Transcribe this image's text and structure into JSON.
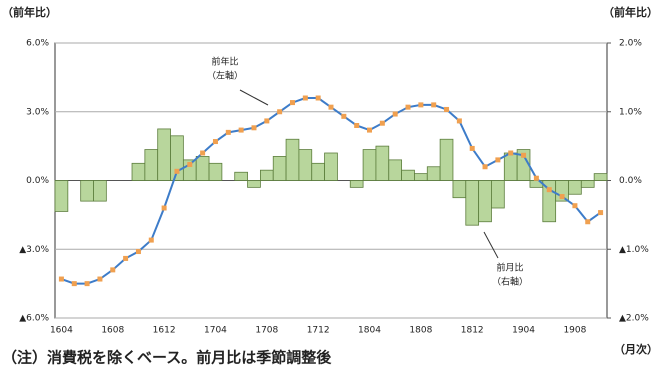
{
  "chart_data": {
    "type": "bar_line",
    "y_label": "（前年比）",
    "y2_label": "（前年比）",
    "x_unit": "（月次）",
    "note": "（注）消費税を除くベース。前月比は季節調整後",
    "annotations": [
      "前年比",
      "（左軸）",
      "前月比",
      "（右軸）"
    ],
    "categories": [
      "1604",
      null,
      null,
      null,
      "1608",
      null,
      null,
      null,
      "1612",
      null,
      null,
      null,
      "1704",
      null,
      null,
      null,
      "1708",
      null,
      null,
      null,
      "1712",
      null,
      null,
      null,
      "1804",
      null,
      null,
      null,
      "1808",
      null,
      null,
      null,
      "1812",
      null,
      null,
      null,
      "1904",
      null,
      null,
      null,
      "1908",
      null,
      null
    ],
    "series": [
      {
        "name": "前月比",
        "type": "bar",
        "axis": "y2",
        "color": "#b8d69c",
        "values": [
          -0.45,
          0,
          -0.3,
          -0.3,
          0,
          0,
          0.25,
          0.45,
          0.75,
          0.65,
          0.3,
          0.35,
          0.25,
          0,
          0.12,
          -0.1,
          0.15,
          0.35,
          0.6,
          0.45,
          0.25,
          0.4,
          0,
          -0.1,
          0.45,
          0.5,
          0.3,
          0.15,
          0.1,
          0.2,
          0.6,
          -0.25,
          -0.65,
          -0.6,
          -0.4,
          0.4,
          0.45,
          -0.1,
          -0.6,
          -0.3,
          -0.2,
          -0.1,
          0.1
        ]
      },
      {
        "name": "前年比",
        "type": "line",
        "axis": "y",
        "color": "#3d7cc9",
        "marker_color": "#f0a050",
        "values": [
          -4.3,
          -4.5,
          -4.5,
          -4.3,
          -3.9,
          -3.4,
          -3.1,
          -2.6,
          -1.2,
          0.4,
          0.7,
          1.2,
          1.7,
          2.1,
          2.2,
          2.3,
          2.6,
          3.0,
          3.4,
          3.6,
          3.6,
          3.2,
          2.8,
          2.4,
          2.2,
          2.5,
          2.9,
          3.2,
          3.3,
          3.3,
          3.1,
          2.6,
          1.4,
          0.6,
          0.9,
          1.2,
          1.1,
          0.1,
          -0.4,
          -0.7,
          -1.1,
          -1.8,
          -1.4
        ]
      }
    ],
    "ylim": [
      -6,
      6
    ],
    "yticks": [
      {
        "value": -6,
        "label": "▲6.0%"
      },
      {
        "value": -3,
        "label": "▲3.0%"
      },
      {
        "value": 0,
        "label": "0.0%"
      },
      {
        "value": 3,
        "label": "3.0%"
      },
      {
        "value": 6,
        "label": "6.0%"
      }
    ],
    "y2lim": [
      -2,
      2
    ],
    "y2ticks": [
      {
        "value": -2,
        "label": "▲2.0%"
      },
      {
        "value": -1,
        "label": "▲1.0%"
      },
      {
        "value": 0,
        "label": "0.0%"
      },
      {
        "value": 1,
        "label": "1.0%"
      },
      {
        "value": 2,
        "label": "2.0%"
      }
    ],
    "grid": true
  }
}
